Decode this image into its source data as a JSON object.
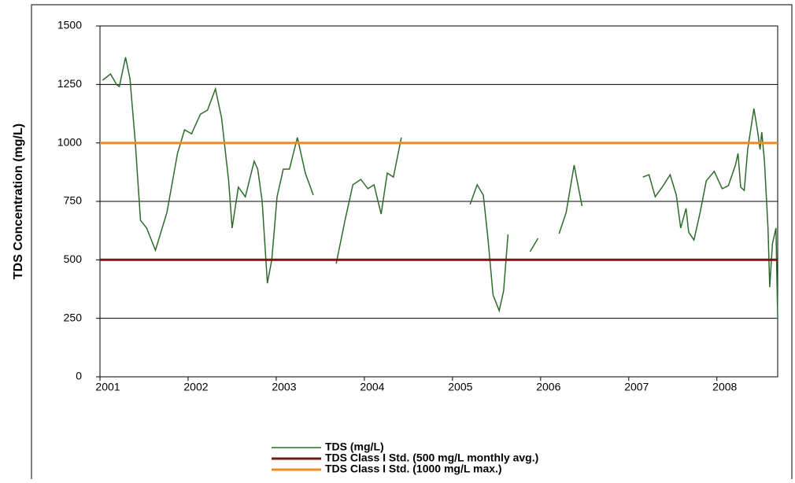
{
  "chart_data": {
    "type": "line",
    "y_label": "TDS Concentration (mg/L)",
    "xlim": [
      2001,
      2008.69
    ],
    "xticks": [
      2001,
      2002,
      2003,
      2004,
      2005,
      2006,
      2007,
      2008
    ],
    "ylim": [
      0,
      1500
    ],
    "yticks": [
      0,
      250,
      500,
      750,
      1000,
      1250,
      1500
    ],
    "grid": true,
    "legend": "bottom",
    "series": [
      {
        "name": "TDS (mg/L)",
        "color": "#2e6b2a",
        "x": [
          2001.03,
          2001.12,
          2001.19,
          2001.22,
          2001.29,
          2001.34,
          2001.4,
          2001.46,
          2001.53,
          2001.63,
          2001.76,
          2001.88,
          2001.96,
          2002.04,
          2002.14,
          2002.22,
          2002.31,
          2002.38,
          2002.46,
          2002.5,
          2002.57,
          2002.65,
          2002.75,
          2002.79,
          2002.84,
          2002.9,
          2002.95,
          2003.01,
          2003.08,
          2003.15,
          2003.24,
          2003.33,
          2003.42,
          null,
          2003.68,
          2003.78,
          2003.87,
          2003.96,
          2004.04,
          2004.11,
          2004.19,
          2004.26,
          2004.33,
          2004.42,
          null,
          2005.2,
          2005.28,
          2005.35,
          2005.4,
          2005.46,
          2005.53,
          2005.58,
          2005.63,
          null,
          2005.88,
          2005.97,
          null,
          2006.21,
          2006.29,
          2006.38,
          2006.47,
          null,
          2007.16,
          2007.23,
          2007.3,
          2007.38,
          2007.47,
          2007.54,
          2007.59,
          2007.65,
          2007.68,
          2007.74,
          2007.81,
          2007.88,
          2007.97,
          2008.06,
          2008.13,
          2008.21,
          2008.24,
          2008.27,
          2008.31,
          2008.35,
          2008.42,
          2008.46,
          2008.49,
          2008.51,
          2008.54,
          2008.58,
          2008.6,
          2008.63,
          2008.67,
          2008.69
        ],
        "values": [
          1268,
          1295,
          1248,
          1241,
          1366,
          1275,
          1006,
          669,
          636,
          541,
          703,
          955,
          1056,
          1039,
          1123,
          1140,
          1231,
          1107,
          838,
          636,
          811,
          770,
          922,
          888,
          753,
          400,
          501,
          770,
          888,
          888,
          1023,
          871,
          777,
          null,
          484,
          669,
          821,
          844,
          804,
          821,
          696,
          871,
          854,
          1023,
          null,
          737,
          821,
          777,
          602,
          350,
          283,
          367,
          609,
          null,
          535,
          592,
          null,
          612,
          703,
          905,
          730,
          null,
          854,
          864,
          770,
          811,
          864,
          777,
          636,
          720,
          619,
          585,
          703,
          838,
          878,
          804,
          817,
          905,
          955,
          811,
          797,
          972,
          1147,
          1056,
          972,
          1046,
          922,
          636,
          383,
          568,
          636,
          249
        ]
      },
      {
        "name": "TDS Class I  Std. (500 mg/L monthly avg.)",
        "color": "#7b1414",
        "x": [
          2001,
          2008.69
        ],
        "values": [
          500,
          500
        ]
      },
      {
        "name": "TDS Class I  Std. (1000 mg/L max.)",
        "color": "#f7891f",
        "x": [
          2001,
          2008.69
        ],
        "values": [
          1000,
          1000
        ]
      }
    ]
  }
}
